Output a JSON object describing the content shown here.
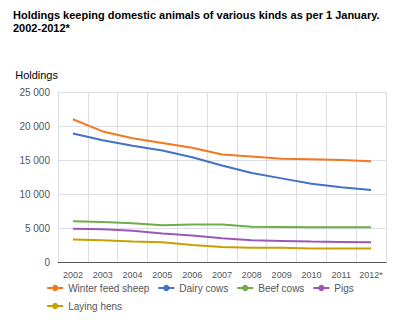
{
  "chart_data": {
    "type": "line",
    "title": "Holdings keeping domestic animals of various kinds as per 1 January.",
    "subtitle": "2002-2012*",
    "y_label": "Holdings",
    "categories": [
      "2002",
      "2003",
      "2004",
      "2005",
      "2006",
      "2007",
      "2008",
      "2009",
      "2010",
      "2011",
      "2012*"
    ],
    "series": [
      {
        "name": "Winter feed sheep",
        "color": "#F47820",
        "values": [
          21000,
          19200,
          18200,
          17500,
          16800,
          15800,
          15500,
          15200,
          15100,
          15000,
          14800
        ]
      },
      {
        "name": "Dairy cows",
        "color": "#4472C4",
        "values": [
          18900,
          17900,
          17100,
          16400,
          15400,
          14200,
          13100,
          12300,
          11500,
          11000,
          10600
        ]
      },
      {
        "name": "Beef cows",
        "color": "#70AD47",
        "values": [
          6000,
          5900,
          5700,
          5400,
          5500,
          5500,
          5200,
          5150,
          5100,
          5100,
          5100
        ]
      },
      {
        "name": "Pigs",
        "color": "#9B59B6",
        "values": [
          4900,
          4800,
          4600,
          4200,
          3900,
          3500,
          3200,
          3100,
          3000,
          2950,
          2900
        ]
      },
      {
        "name": "Laying hens",
        "color": "#C8A000",
        "values": [
          3300,
          3200,
          3000,
          2900,
          2500,
          2200,
          2100,
          2100,
          2000,
          2000,
          2000
        ]
      }
    ],
    "ylim": [
      0,
      25000
    ],
    "yticks": [
      0,
      {
        "value": 5000,
        "label": "5 000"
      },
      {
        "value": 10000,
        "label": "10 000"
      },
      {
        "value": 15000,
        "label": "15 000"
      },
      {
        "value": 20000,
        "label": "20 000"
      },
      {
        "value": 25000,
        "label": "25 000"
      }
    ],
    "grid": true,
    "legend": "bottom"
  }
}
